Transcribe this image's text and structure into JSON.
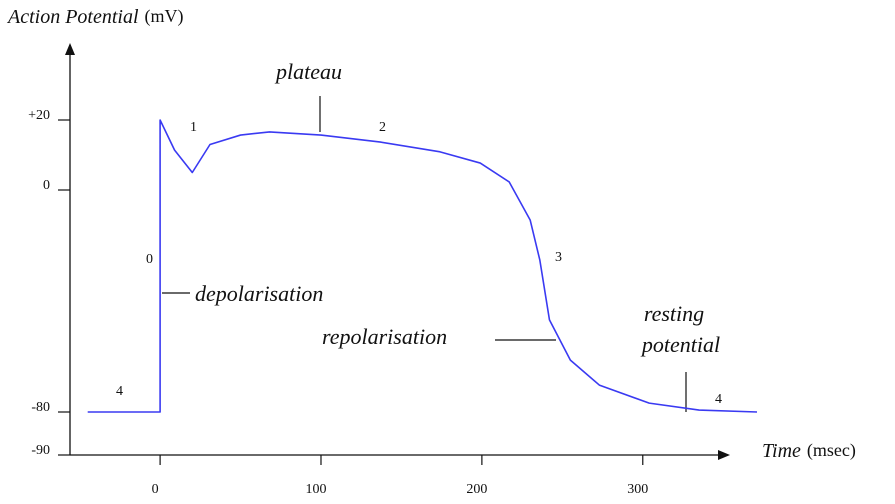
{
  "chart_data": {
    "type": "line",
    "y_label": "Action Potential",
    "y_unit": "(mV)",
    "x_label": "Time",
    "x_unit": "(msec)",
    "x": [
      -45,
      0,
      0,
      9,
      20,
      31,
      50,
      68,
      100,
      137,
      174,
      199,
      217,
      230,
      236,
      242,
      255,
      273,
      304,
      335,
      371
    ],
    "values": [
      -80,
      -80,
      20,
      11.4,
      5,
      13,
      15.7,
      16.6,
      15.7,
      13.7,
      10.9,
      7.7,
      2.3,
      -10.8,
      -25.2,
      -46.8,
      -61.3,
      -70.3,
      -76.8,
      -79.3,
      -80
    ],
    "color": "#3a3af2",
    "xlim": [
      -56,
      348
    ],
    "xticks": [
      0,
      100,
      200,
      300
    ],
    "yticks": [
      -90,
      -80,
      0,
      {
        "value": 20,
        "label": "+20"
      }
    ],
    "annotations": {
      "phase1": "1",
      "phase2": "2",
      "phase3": "3",
      "phase4_left": "4",
      "phase4_right": "4",
      "phase0": "0",
      "plateau": "plateau",
      "depolarisation": "depolarisation",
      "repolarisation": "repolarisation",
      "resting": [
        "resting",
        "potential"
      ]
    }
  }
}
